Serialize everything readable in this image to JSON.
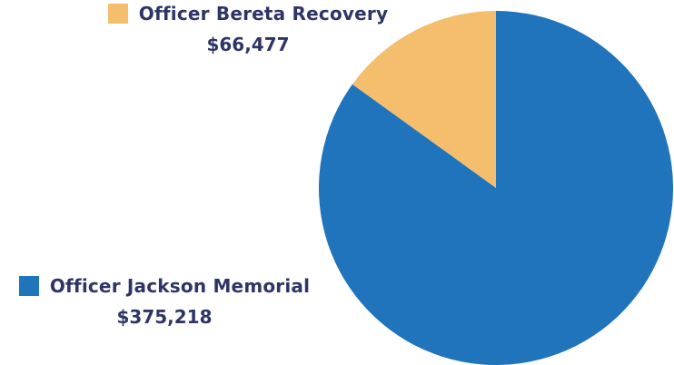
{
  "chart_data": {
    "type": "pie",
    "title": "",
    "series": [
      {
        "name": "Officer Jackson Memorial",
        "value": 375218,
        "label": "$375,218",
        "color": "#1f74bb"
      },
      {
        "name": "Officer Bereta Recovery",
        "value": 66477,
        "label": "$66,477",
        "color": "#f5be6c"
      }
    ]
  }
}
